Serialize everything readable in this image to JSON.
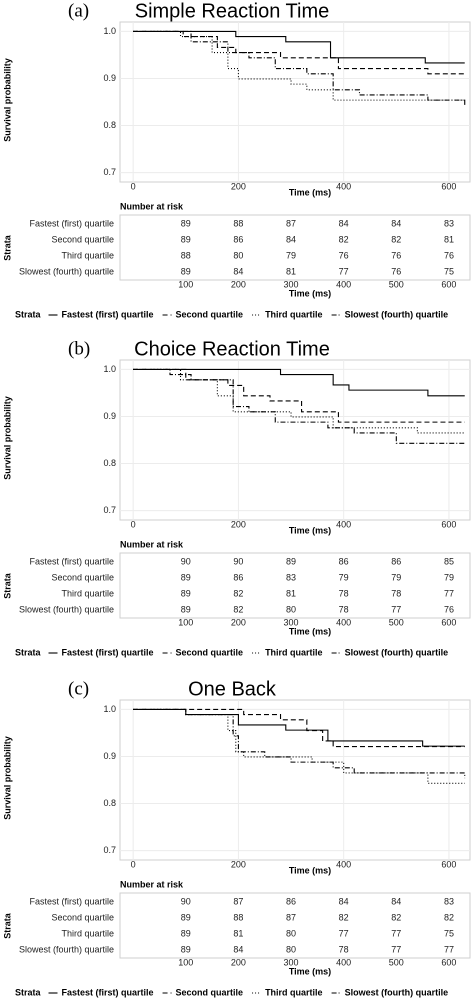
{
  "chart_data": [
    {
      "type": "survival",
      "label": "(a)",
      "title": "Simple Reaction Time",
      "ylabel": "Survival probability",
      "xlabel": "Time (ms)",
      "xlim": [
        -25,
        640
      ],
      "ylim": [
        0.68,
        1.02
      ],
      "xticks": [
        0,
        200,
        400,
        600
      ],
      "yticks": [
        0.7,
        0.8,
        0.9,
        {
          "value": 1,
          "label": "1.0"
        }
      ],
      "grid": true,
      "legend_title": "Strata",
      "series": [
        {
          "name": "Fastest (first) quartile",
          "color": "#000000",
          "linestyle": "solid",
          "x": [
            0,
            195,
            290,
            375,
            555,
            630
          ],
          "values": [
            1,
            0.989,
            0.978,
            0.944,
            0.933,
            0.933
          ]
        },
        {
          "name": "Second quartile",
          "color": "#000000",
          "linestyle": "dashed",
          "x": [
            0,
            95,
            160,
            195,
            280,
            390,
            560,
            630
          ],
          "values": [
            1,
            0.989,
            0.966,
            0.955,
            0.944,
            0.921,
            0.91,
            0.91
          ]
        },
        {
          "name": "Third quartile",
          "color": "#000000",
          "linestyle": "dotted",
          "x": [
            0,
            90,
            150,
            180,
            200,
            300,
            330,
            380,
            630
          ],
          "values": [
            1,
            0.989,
            0.955,
            0.921,
            0.899,
            0.888,
            0.876,
            0.854,
            0.854
          ]
        },
        {
          "name": "Slowest (fourth) quartile",
          "color": "#000000",
          "linestyle": "dashdot",
          "x": [
            0,
            110,
            180,
            220,
            270,
            330,
            380,
            430,
            560,
            630
          ],
          "values": [
            1,
            0.978,
            0.955,
            0.944,
            0.921,
            0.91,
            0.876,
            0.865,
            0.854,
            0.843
          ]
        }
      ],
      "risk_table": {
        "title": "Number at risk",
        "ylabel": "Strata",
        "xlabel": "Time (ms)",
        "xticks": [
          100,
          200,
          300,
          400,
          500,
          600
        ],
        "rows": [
          {
            "name": "Fastest (first) quartile",
            "values": [
              89,
              88,
              87,
              84,
              84,
              83
            ]
          },
          {
            "name": "Second quartile",
            "values": [
              89,
              86,
              84,
              82,
              82,
              81
            ]
          },
          {
            "name": "Third quartile",
            "values": [
              88,
              80,
              79,
              76,
              76,
              76
            ]
          },
          {
            "name": "Slowest (fourth) quartile",
            "values": [
              89,
              84,
              81,
              77,
              76,
              75
            ]
          }
        ]
      }
    },
    {
      "type": "survival",
      "label": "(b)",
      "title": "Choice Reaction Time",
      "ylabel": "Survival probability",
      "xlabel": "Time (ms)",
      "xlim": [
        -25,
        640
      ],
      "ylim": [
        0.68,
        1.02
      ],
      "xticks": [
        0,
        200,
        400,
        600
      ],
      "yticks": [
        0.7,
        0.8,
        0.9,
        {
          "value": 1,
          "label": "1.0"
        }
      ],
      "grid": true,
      "legend_title": "Strata",
      "series": [
        {
          "name": "Fastest (first) quartile",
          "color": "#000000",
          "linestyle": "solid",
          "x": [
            0,
            280,
            380,
            410,
            560,
            630
          ],
          "values": [
            1,
            0.989,
            0.967,
            0.956,
            0.944,
            0.944
          ]
        },
        {
          "name": "Second quartile",
          "color": "#000000",
          "linestyle": "dashed",
          "x": [
            0,
            100,
            180,
            210,
            260,
            320,
            390,
            630
          ],
          "values": [
            1,
            0.978,
            0.966,
            0.944,
            0.933,
            0.91,
            0.888,
            0.888
          ]
        },
        {
          "name": "Third quartile",
          "color": "#000000",
          "linestyle": "dotted",
          "x": [
            0,
            90,
            160,
            190,
            300,
            380,
            540,
            630
          ],
          "values": [
            1,
            0.978,
            0.944,
            0.91,
            0.899,
            0.876,
            0.865,
            0.865
          ]
        },
        {
          "name": "Slowest (fourth) quartile",
          "color": "#000000",
          "linestyle": "dashdot",
          "x": [
            0,
            70,
            110,
            190,
            220,
            270,
            370,
            420,
            500,
            630
          ],
          "values": [
            1,
            0.989,
            0.978,
            0.921,
            0.91,
            0.888,
            0.876,
            0.865,
            0.843,
            0.843
          ]
        }
      ],
      "risk_table": {
        "title": "Number at risk",
        "ylabel": "Strata",
        "xlabel": "Time (ms)",
        "xticks": [
          100,
          200,
          300,
          400,
          500,
          600
        ],
        "rows": [
          {
            "name": "Fastest (first) quartile",
            "values": [
              90,
              90,
              89,
              86,
              86,
              85
            ]
          },
          {
            "name": "Second quartile",
            "values": [
              89,
              86,
              83,
              79,
              79,
              79
            ]
          },
          {
            "name": "Third quartile",
            "values": [
              89,
              82,
              81,
              78,
              78,
              77
            ]
          },
          {
            "name": "Slowest (fourth) quartile",
            "values": [
              89,
              82,
              80,
              78,
              77,
              76
            ]
          }
        ]
      }
    },
    {
      "type": "survival",
      "label": "(c)",
      "title": "One Back",
      "ylabel": "Survival probability",
      "xlabel": "Time (ms)",
      "xlim": [
        -25,
        640
      ],
      "ylim": [
        0.68,
        1.02
      ],
      "xticks": [
        0,
        200,
        400,
        600
      ],
      "yticks": [
        0.7,
        0.8,
        0.9,
        {
          "value": 1,
          "label": "1.0"
        }
      ],
      "grid": true,
      "legend_title": "Strata",
      "series": [
        {
          "name": "Fastest (first) quartile",
          "color": "#000000",
          "linestyle": "solid",
          "x": [
            0,
            100,
            200,
            290,
            370,
            550,
            630
          ],
          "values": [
            1,
            0.989,
            0.967,
            0.956,
            0.933,
            0.922,
            0.922
          ]
        },
        {
          "name": "Second quartile",
          "color": "#000000",
          "linestyle": "dashed",
          "x": [
            0,
            210,
            280,
            330,
            360,
            380,
            630
          ],
          "values": [
            1,
            0.989,
            0.978,
            0.955,
            0.933,
            0.921,
            0.921
          ]
        },
        {
          "name": "Third quartile",
          "color": "#000000",
          "linestyle": "dotted",
          "x": [
            0,
            100,
            180,
            195,
            210,
            340,
            400,
            560,
            630
          ],
          "values": [
            1,
            0.989,
            0.955,
            0.91,
            0.899,
            0.888,
            0.865,
            0.843,
            0.843
          ]
        },
        {
          "name": "Slowest (fourth) quartile",
          "color": "#000000",
          "linestyle": "dashdot",
          "x": [
            0,
            100,
            190,
            200,
            250,
            300,
            380,
            420,
            630
          ],
          "values": [
            1,
            0.989,
            0.944,
            0.91,
            0.899,
            0.888,
            0.876,
            0.865,
            0.854
          ]
        }
      ],
      "risk_table": {
        "title": "Number at risk",
        "ylabel": "Strata",
        "xlabel": "Time (ms)",
        "xticks": [
          100,
          200,
          300,
          400,
          500,
          600
        ],
        "rows": [
          {
            "name": "Fastest (first) quartile",
            "values": [
              90,
              87,
              86,
              84,
              84,
              83
            ]
          },
          {
            "name": "Second quartile",
            "values": [
              89,
              88,
              87,
              82,
              82,
              82
            ]
          },
          {
            "name": "Third quartile",
            "values": [
              89,
              81,
              80,
              77,
              77,
              75
            ]
          },
          {
            "name": "Slowest (fourth) quartile",
            "values": [
              89,
              84,
              80,
              78,
              77,
              77
            ]
          }
        ]
      }
    }
  ]
}
